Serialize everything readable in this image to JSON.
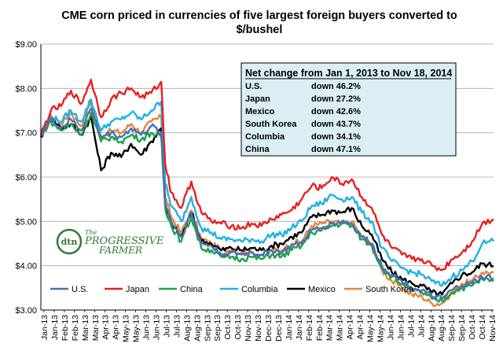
{
  "chart_data": {
    "type": "line",
    "title_line1": "CME corn priced in currencies of five largest foreign buyers converted to",
    "title_line2": "$/bushel",
    "xlabel": "",
    "ylabel": "",
    "ylim": [
      3.0,
      9.0
    ],
    "y_ticks": [
      "$3.00",
      "$4.00",
      "$5.00",
      "$6.00",
      "$7.00",
      "$8.00",
      "$9.00"
    ],
    "x_ticks": [
      "Jan-13",
      "Jan-13",
      "Feb-13",
      "Feb-13",
      "Mar-13",
      "Mar-13",
      "Apr-13",
      "Apr-13",
      "May-13",
      "May-13",
      "Jun-13",
      "Jun-13",
      "Jul-13",
      "Jul-13",
      "Aug-13",
      "Aug-13",
      "Sep-13",
      "Sep-13",
      "Oct-13",
      "Oct-13",
      "Nov-13",
      "Nov-13",
      "Dec-13",
      "Dec-13",
      "Jan-14",
      "Jan-14",
      "Feb-14",
      "Feb-14",
      "Mar-14",
      "Mar-14",
      "Apr-14",
      "Apr-14",
      "May-14",
      "May-14",
      "Jun-14",
      "Jun-14",
      "Jul-14",
      "Jul-14",
      "Aug-14",
      "Aug-14",
      "Sep-14",
      "Sep-14",
      "Oct-14",
      "Oct-14",
      "Nov-14"
    ],
    "x_start_month": "2013-01-01",
    "x_end_month": "2014-11-18",
    "grid": "horizontal",
    "legend_position": "bottom-left",
    "series": [
      {
        "name": "U.S.",
        "color": "#4a6fb5",
        "months": [
          0,
          0.5,
          1,
          1.5,
          2,
          2.5,
          3,
          3.5,
          4,
          4.5,
          5,
          5.5,
          6,
          6.2,
          6.5,
          7,
          7.5,
          8,
          8.5,
          9,
          9.5,
          10,
          10.5,
          11,
          11.5,
          12,
          12.5,
          13,
          13.5,
          14,
          14.5,
          15,
          15.5,
          16,
          16.5,
          17,
          17.5,
          18,
          18.5,
          19,
          19.5,
          20,
          20.5,
          21,
          21.5,
          22,
          22.57
        ],
        "values": [
          6.95,
          7.3,
          7.1,
          7.3,
          7.05,
          7.55,
          6.9,
          7.0,
          6.9,
          7.1,
          6.95,
          7.15,
          7.0,
          5.4,
          5.0,
          4.65,
          5.2,
          4.5,
          4.45,
          4.25,
          4.3,
          4.25,
          4.3,
          4.25,
          4.35,
          4.3,
          4.45,
          4.5,
          4.8,
          4.85,
          4.95,
          5.0,
          4.95,
          4.65,
          4.5,
          4.0,
          3.8,
          3.65,
          3.5,
          3.45,
          3.3,
          3.25,
          3.45,
          3.55,
          3.6,
          3.75,
          3.72
        ]
      },
      {
        "name": "Japan",
        "color": "#e8201f",
        "months": [
          0,
          0.5,
          1,
          1.5,
          2,
          2.5,
          3,
          3.5,
          4,
          4.5,
          5,
          5.5,
          6,
          6.2,
          6.5,
          7,
          7.5,
          8,
          8.5,
          9,
          9.5,
          10,
          10.5,
          11,
          11.5,
          12,
          12.5,
          13,
          13.5,
          14,
          14.5,
          15,
          15.5,
          16,
          16.5,
          17,
          17.5,
          18,
          18.5,
          19,
          19.5,
          20,
          20.5,
          21,
          21.5,
          22,
          22.57
        ],
        "values": [
          6.95,
          7.5,
          7.6,
          7.95,
          7.65,
          8.2,
          7.35,
          7.75,
          7.9,
          8.0,
          7.8,
          7.9,
          8.15,
          6.3,
          5.65,
          5.3,
          5.9,
          5.2,
          5.0,
          4.95,
          4.9,
          4.85,
          4.95,
          4.9,
          5.05,
          5.15,
          5.25,
          5.5,
          5.8,
          5.75,
          6.0,
          5.85,
          5.95,
          5.55,
          5.3,
          4.7,
          4.4,
          4.25,
          4.15,
          4.15,
          4.0,
          3.9,
          4.15,
          4.3,
          4.55,
          4.95,
          5.05
        ]
      },
      {
        "name": "China",
        "color": "#1aa34a",
        "months": [
          0,
          0.5,
          1,
          1.5,
          2,
          2.5,
          3,
          3.5,
          4,
          4.5,
          5,
          5.5,
          6,
          6.2,
          6.5,
          7,
          7.5,
          8,
          8.5,
          9,
          9.5,
          10,
          10.5,
          11,
          11.5,
          12,
          12.5,
          13,
          13.5,
          14,
          14.5,
          15,
          15.5,
          16,
          16.5,
          17,
          17.5,
          18,
          18.5,
          19,
          19.5,
          20,
          20.5,
          21,
          21.5,
          22,
          22.57
        ],
        "values": [
          6.95,
          7.25,
          7.05,
          7.2,
          6.95,
          7.45,
          6.8,
          6.9,
          6.8,
          6.95,
          6.85,
          7.0,
          6.9,
          5.3,
          4.9,
          4.55,
          5.1,
          4.4,
          4.35,
          4.2,
          4.2,
          4.15,
          4.2,
          4.15,
          4.25,
          4.2,
          4.35,
          4.45,
          4.75,
          4.8,
          4.9,
          4.95,
          4.9,
          4.6,
          4.45,
          3.95,
          3.75,
          3.6,
          3.45,
          3.4,
          3.25,
          3.2,
          3.4,
          3.5,
          3.55,
          3.7,
          3.65
        ]
      },
      {
        "name": "Columbia",
        "color": "#20b0e6",
        "months": [
          0,
          0.5,
          1,
          1.5,
          2,
          2.5,
          3,
          3.5,
          4,
          4.5,
          5,
          5.5,
          6,
          6.2,
          6.5,
          7,
          7.5,
          8,
          8.5,
          9,
          9.5,
          10,
          10.5,
          11,
          11.5,
          12,
          12.5,
          13,
          13.5,
          14,
          14.5,
          15,
          15.5,
          16,
          16.5,
          17,
          17.5,
          18,
          18.5,
          19,
          19.5,
          20,
          20.5,
          21,
          21.5,
          22,
          22.57
        ],
        "values": [
          6.95,
          7.35,
          7.25,
          7.5,
          7.25,
          7.75,
          7.05,
          7.25,
          7.3,
          7.45,
          7.3,
          7.5,
          7.7,
          5.85,
          5.35,
          5.0,
          5.55,
          4.85,
          4.75,
          4.6,
          4.6,
          4.55,
          4.6,
          4.55,
          4.7,
          4.7,
          4.85,
          5.0,
          5.35,
          5.4,
          5.6,
          5.5,
          5.55,
          5.2,
          5.0,
          4.4,
          4.1,
          3.95,
          3.85,
          3.8,
          3.65,
          3.55,
          3.75,
          3.9,
          4.1,
          4.5,
          4.55
        ]
      },
      {
        "name": "Mexico",
        "color": "#000000",
        "months": [
          0,
          0.5,
          1,
          1.5,
          2,
          2.5,
          3,
          3.5,
          4,
          4.5,
          5,
          5.5,
          6,
          6.2,
          6.5,
          7,
          7.5,
          8,
          8.5,
          9,
          9.5,
          10,
          10.5,
          11,
          11.5,
          12,
          12.5,
          13,
          13.5,
          14,
          14.5,
          15,
          15.5,
          16,
          16.5,
          17,
          17.5,
          18,
          18.5,
          19,
          19.5,
          20,
          20.5,
          21,
          21.5,
          22,
          22.57
        ],
        "values": [
          6.9,
          7.35,
          7.1,
          7.2,
          6.95,
          7.35,
          6.15,
          6.55,
          6.45,
          6.75,
          6.5,
          6.8,
          7.1,
          5.35,
          4.95,
          4.65,
          5.2,
          4.55,
          4.5,
          4.35,
          4.4,
          4.35,
          4.4,
          4.35,
          4.45,
          4.5,
          4.65,
          4.75,
          5.1,
          5.15,
          5.25,
          5.2,
          5.3,
          4.9,
          4.7,
          4.15,
          3.85,
          3.7,
          3.6,
          3.55,
          3.4,
          3.35,
          3.6,
          3.8,
          3.85,
          4.05,
          4.0
        ]
      },
      {
        "name": "South Korea",
        "color": "#e0893a",
        "months": [
          0,
          0.5,
          1,
          1.5,
          2,
          2.5,
          3,
          3.5,
          4,
          4.5,
          5,
          5.5,
          6,
          6.2,
          6.5,
          7,
          7.5,
          8,
          8.5,
          9,
          9.5,
          10,
          10.5,
          11,
          11.5,
          12,
          12.5,
          13,
          13.5,
          14,
          14.5,
          15,
          15.5,
          16,
          16.5,
          17,
          17.5,
          18,
          18.5,
          19,
          19.5,
          20,
          20.5,
          21,
          21.5,
          22,
          22.57
        ],
        "values": [
          6.9,
          7.4,
          7.2,
          7.45,
          7.15,
          7.7,
          6.9,
          7.05,
          7.0,
          7.2,
          7.0,
          7.25,
          7.35,
          5.55,
          5.1,
          4.75,
          5.25,
          4.6,
          4.5,
          4.35,
          4.35,
          4.3,
          4.3,
          4.25,
          4.35,
          4.35,
          4.5,
          4.55,
          4.9,
          4.95,
          5.0,
          4.95,
          5.0,
          4.65,
          4.45,
          3.9,
          3.65,
          3.5,
          3.35,
          3.3,
          3.15,
          3.15,
          3.4,
          3.6,
          3.65,
          3.85,
          3.85
        ]
      }
    ],
    "annotation": {
      "heading": "Net change from Jan 1, 2013 to Nov 18, 2014",
      "rows": [
        {
          "country": "U.S.",
          "change": "down 46.2%"
        },
        {
          "country": "Japan",
          "change": "down 27.2%"
        },
        {
          "country": "Mexico",
          "change": "down 42.6%"
        },
        {
          "country": "South Korea",
          "change": "down 43.7%"
        },
        {
          "country": "Columbia",
          "change": "down 34.1%"
        },
        {
          "country": "China",
          "change": "down 47.1%"
        }
      ]
    }
  },
  "logo": {
    "badge": "dtn",
    "small": "The",
    "line1": "PROGRESSIVE",
    "line2": "FARMER"
  }
}
